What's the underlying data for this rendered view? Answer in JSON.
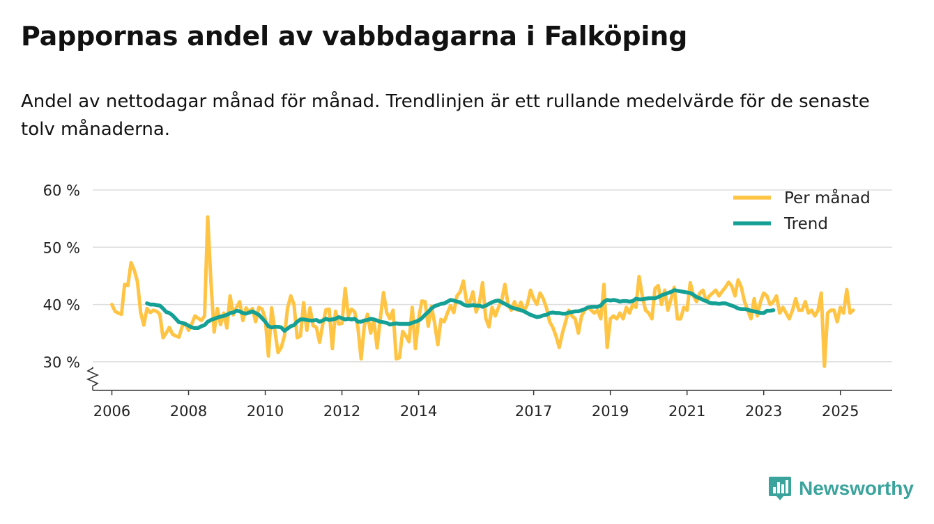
{
  "title": "Pappornas andel av vabbdagarna i Falköping",
  "subtitle": "Andel av nettodagar månad för månad. Trendlinjen är ett rullande medelvärde för de senaste tolv månaderna.",
  "brand": {
    "name": "Newsworthy",
    "color": "#3aa39c",
    "icon": "bar-chart-speech-bubble-icon"
  },
  "colors": {
    "monthly": "#ffc444",
    "trend": "#15a095",
    "grid": "#dddddd",
    "axis": "#333333"
  },
  "chart_data": {
    "type": "line",
    "title": "Pappornas andel av vabbdagarna i Falköping",
    "xlabel": "",
    "ylabel": "",
    "unit": "%",
    "ylim": [
      25,
      60
    ],
    "xlim": [
      2005.5,
      2026.35
    ],
    "y_ticks": [
      {
        "value": 30,
        "label": "30 %"
      },
      {
        "value": 40,
        "label": "40 %"
      },
      {
        "value": 50,
        "label": "50 %"
      },
      {
        "value": 60,
        "label": "60 %"
      }
    ],
    "x_ticks": [
      {
        "value": 2006,
        "label": "2006"
      },
      {
        "value": 2008,
        "label": "2008"
      },
      {
        "value": 2010,
        "label": "2010"
      },
      {
        "value": 2012,
        "label": "2012"
      },
      {
        "value": 2014,
        "label": "2014"
      },
      {
        "value": 2017,
        "label": "2017"
      },
      {
        "value": 2019,
        "label": "2019"
      },
      {
        "value": 2021,
        "label": "2021"
      },
      {
        "value": 2023,
        "label": "2023"
      },
      {
        "value": 2025,
        "label": "2025"
      }
    ],
    "grid": true,
    "axis_break": true,
    "legend_position": "top-right",
    "series": [
      {
        "name": "Per månad",
        "color": "#ffc444",
        "start": 2006.0,
        "step_months": 1,
        "values": [
          40.0,
          38.8,
          38.5,
          38.3,
          43.5,
          43.3,
          47.3,
          46.0,
          44.0,
          38.6,
          36.4,
          39.3,
          38.6,
          39.0,
          38.8,
          38.3,
          34.2,
          35.0,
          36.0,
          34.8,
          34.5,
          34.3,
          36.2,
          36.7,
          35.5,
          36.6,
          38.0,
          37.6,
          37.2,
          38.0,
          55.3,
          44.0,
          35.2,
          39.3,
          36.5,
          38.5,
          35.9,
          41.5,
          38.2,
          39.5,
          40.5,
          37.2,
          39.4,
          38.6,
          39.3,
          37.0,
          39.5,
          39.2,
          37.5,
          31.0,
          39.4,
          35.5,
          31.6,
          32.5,
          34.5,
          39.4,
          41.5,
          40.0,
          34.2,
          34.5,
          40.3,
          35.5,
          39.4,
          36.3,
          36.0,
          33.4,
          36.6,
          39.1,
          39.2,
          32.3,
          38.8,
          36.6,
          36.7,
          42.8,
          38.0,
          39.2,
          38.7,
          36.0,
          30.5,
          36.3,
          38.3,
          35.0,
          37.3,
          32.4,
          37.5,
          42.1,
          38.6,
          37.5,
          39.0,
          30.5,
          30.7,
          35.3,
          34.5,
          33.5,
          39.5,
          32.3,
          37.5,
          40.6,
          40.5,
          36.2,
          39.7,
          36.8,
          33.0,
          37.4,
          37.0,
          38.5,
          39.8,
          38.6,
          41.5,
          42.2,
          44.1,
          40.5,
          40.4,
          42.2,
          38.7,
          40.3,
          43.8,
          37.6,
          36.1,
          39.5,
          38.0,
          39.5,
          40.7,
          43.5,
          40.0,
          39.0,
          40.5,
          39.0,
          40.4,
          38.9,
          40.0,
          42.5,
          41.0,
          40.0,
          42.0,
          41.0,
          39.4,
          37.0,
          36.0,
          34.5,
          32.5,
          35.0,
          37.0,
          39.0,
          38.0,
          37.5,
          35.0,
          38.0,
          39.0,
          39.5,
          39.0,
          38.5,
          39.0,
          37.5,
          43.5,
          32.5,
          37.5,
          38.0,
          37.5,
          38.5,
          37.5,
          39.5,
          38.5,
          40.0,
          39.5,
          44.9,
          41.5,
          39.0,
          38.5,
          37.5,
          42.8,
          43.3,
          40.0,
          42.5,
          39.0,
          41.0,
          43.0,
          37.5,
          37.5,
          39.5,
          39.0,
          43.8,
          41.5,
          40.5,
          42.0,
          42.5,
          40.5,
          41.5,
          42.0,
          42.5,
          41.5,
          42.3,
          43.0,
          43.9,
          43.2,
          41.5,
          44.3,
          43.0,
          40.5,
          39.0,
          37.5,
          41.0,
          38.0,
          40.5,
          42.0,
          41.5,
          40.0,
          40.5,
          41.5,
          38.5,
          39.5,
          38.5,
          37.5,
          39.0,
          41.0,
          39.0,
          39.0,
          40.5,
          38.5,
          39.0,
          38.0,
          39.0,
          42.0,
          29.2,
          38.5,
          39.0,
          39.0,
          37.0,
          39.5,
          38.5,
          42.6,
          38.5,
          39.0
        ]
      },
      {
        "name": "Trend",
        "color": "#15a095",
        "start": 2006.9167,
        "step_months": 1,
        "values": [
          40.2,
          40.0,
          40.0,
          39.9,
          39.8,
          39.3,
          38.7,
          38.5,
          38.1,
          37.5,
          36.9,
          36.8,
          36.6,
          36.3,
          36.0,
          35.9,
          35.9,
          36.2,
          36.4,
          37.0,
          37.3,
          37.5,
          37.7,
          37.9,
          38.0,
          38.2,
          38.5,
          38.6,
          38.9,
          38.8,
          38.5,
          38.4,
          38.6,
          38.8,
          38.5,
          38.2,
          37.6,
          37.0,
          36.2,
          36.0,
          36.1,
          36.1,
          36.0,
          35.4,
          35.8,
          36.2,
          36.4,
          37.0,
          37.4,
          37.4,
          37.3,
          37.2,
          37.2,
          37.3,
          37.0,
          37.2,
          37.5,
          37.3,
          37.4,
          37.5,
          37.8,
          37.6,
          37.4,
          37.5,
          37.4,
          37.5,
          37.0,
          37.0,
          37.2,
          37.3,
          37.5,
          37.4,
          37.2,
          37.0,
          36.9,
          36.8,
          36.5,
          36.6,
          36.7,
          36.6,
          36.6,
          36.6,
          36.6,
          36.8,
          37.0,
          37.2,
          37.6,
          38.2,
          38.7,
          39.3,
          39.7,
          39.9,
          40.1,
          40.2,
          40.5,
          40.8,
          40.7,
          40.5,
          40.4,
          40.0,
          39.8,
          39.8,
          39.9,
          39.8,
          39.8,
          39.6,
          39.8,
          40.1,
          40.4,
          40.6,
          40.7,
          40.4,
          40.1,
          39.8,
          39.5,
          39.3,
          39.2,
          39.0,
          38.8,
          38.5,
          38.2,
          38.0,
          37.8,
          37.9,
          38.1,
          38.2,
          38.5,
          38.6,
          38.5,
          38.5,
          38.4,
          38.4,
          38.6,
          38.7,
          38.8,
          38.8,
          39.0,
          39.2,
          39.5,
          39.6,
          39.6,
          39.6,
          39.8,
          40.5,
          40.8,
          40.7,
          40.8,
          40.7,
          40.5,
          40.6,
          40.6,
          40.5,
          40.6,
          41.0,
          40.9,
          40.9,
          41.0,
          41.1,
          41.1,
          41.1,
          41.3,
          41.6,
          41.8,
          42.0,
          42.2,
          42.5,
          42.4,
          42.3,
          42.2,
          42.1,
          42.0,
          41.7,
          41.3,
          41.1,
          40.8,
          40.6,
          40.3,
          40.2,
          40.2,
          40.1,
          40.2,
          40.2,
          40.0,
          39.8,
          39.6,
          39.3,
          39.2,
          39.2,
          39.1,
          38.9,
          38.8,
          38.7,
          38.5,
          38.5,
          38.9,
          38.9,
          39.0
        ]
      }
    ]
  }
}
